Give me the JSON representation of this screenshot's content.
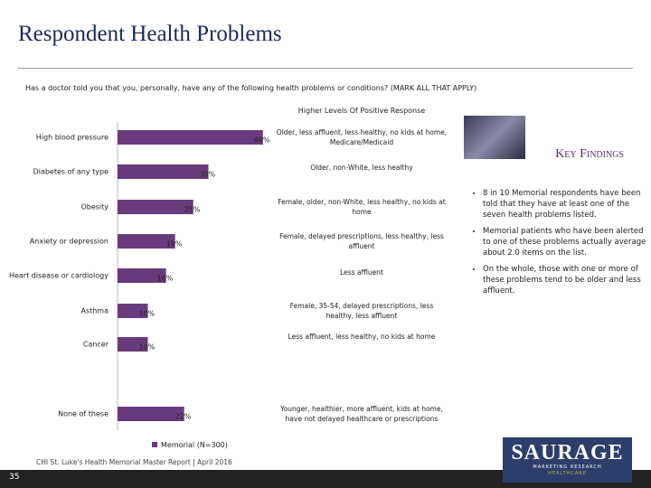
{
  "title": "Respondent Health Problems",
  "question": "Has a doctor told you that you, personally, have any of the following health problems or conditions? (MARK ALL THAT APPLY)",
  "chart_data": {
    "type": "bar",
    "orientation": "horizontal",
    "categories": [
      "High blood pressure",
      "Diabetes of any type",
      "Obesity",
      "Anxiety or depression",
      "Heart disease or cardiology",
      "Asthma",
      "Cancer",
      "None of these"
    ],
    "series": [
      {
        "name": "Memorial (N=300)",
        "color": "#6a3b7c",
        "values": [
          48,
          30,
          25,
          19,
          16,
          10,
          10,
          22
        ],
        "value_labels": [
          "48%",
          "30%",
          "25%",
          "19%",
          "16%",
          "10%",
          "10%",
          "22%"
        ]
      }
    ],
    "xlim": [
      0,
      100
    ],
    "annotations_header": "Higher Levels Of Positive Response",
    "annotations": [
      "Older, less affluent, less healthy, no kids at home, Medicare/Medicaid",
      "Older, non-White, less healthy",
      "Female, older, non-White, less healthy, no kids at home",
      "Female, delayed prescriptions, less healthy, less affluent",
      "Less affluent",
      "Female, 35-54, delayed prescriptions, less healthy, less affluent",
      "Less affluent, less healthy, no kids at home",
      "Younger, healthier, more affluent, kids at home, have not delayed healthcare or prescriptions"
    ]
  },
  "key_findings": {
    "heading": "Key Findings",
    "bullets": [
      "8 in 10 Memorial respondents have been told that they have at least one of the seven health problems listed.",
      "Memorial patients who have been alerted to one of these problems actually average about 2.0 items on the list.",
      "On the whole, those with one or more of these problems tend to be older and less affluent."
    ]
  },
  "footer": {
    "source": "CHI St. Luke's Health Memorial Master Report | April 2016",
    "page": "35",
    "logo": {
      "name": "SAURAGE",
      "tagline": "MARKETING RESEARCH",
      "division": "HEALTHCARE"
    }
  }
}
